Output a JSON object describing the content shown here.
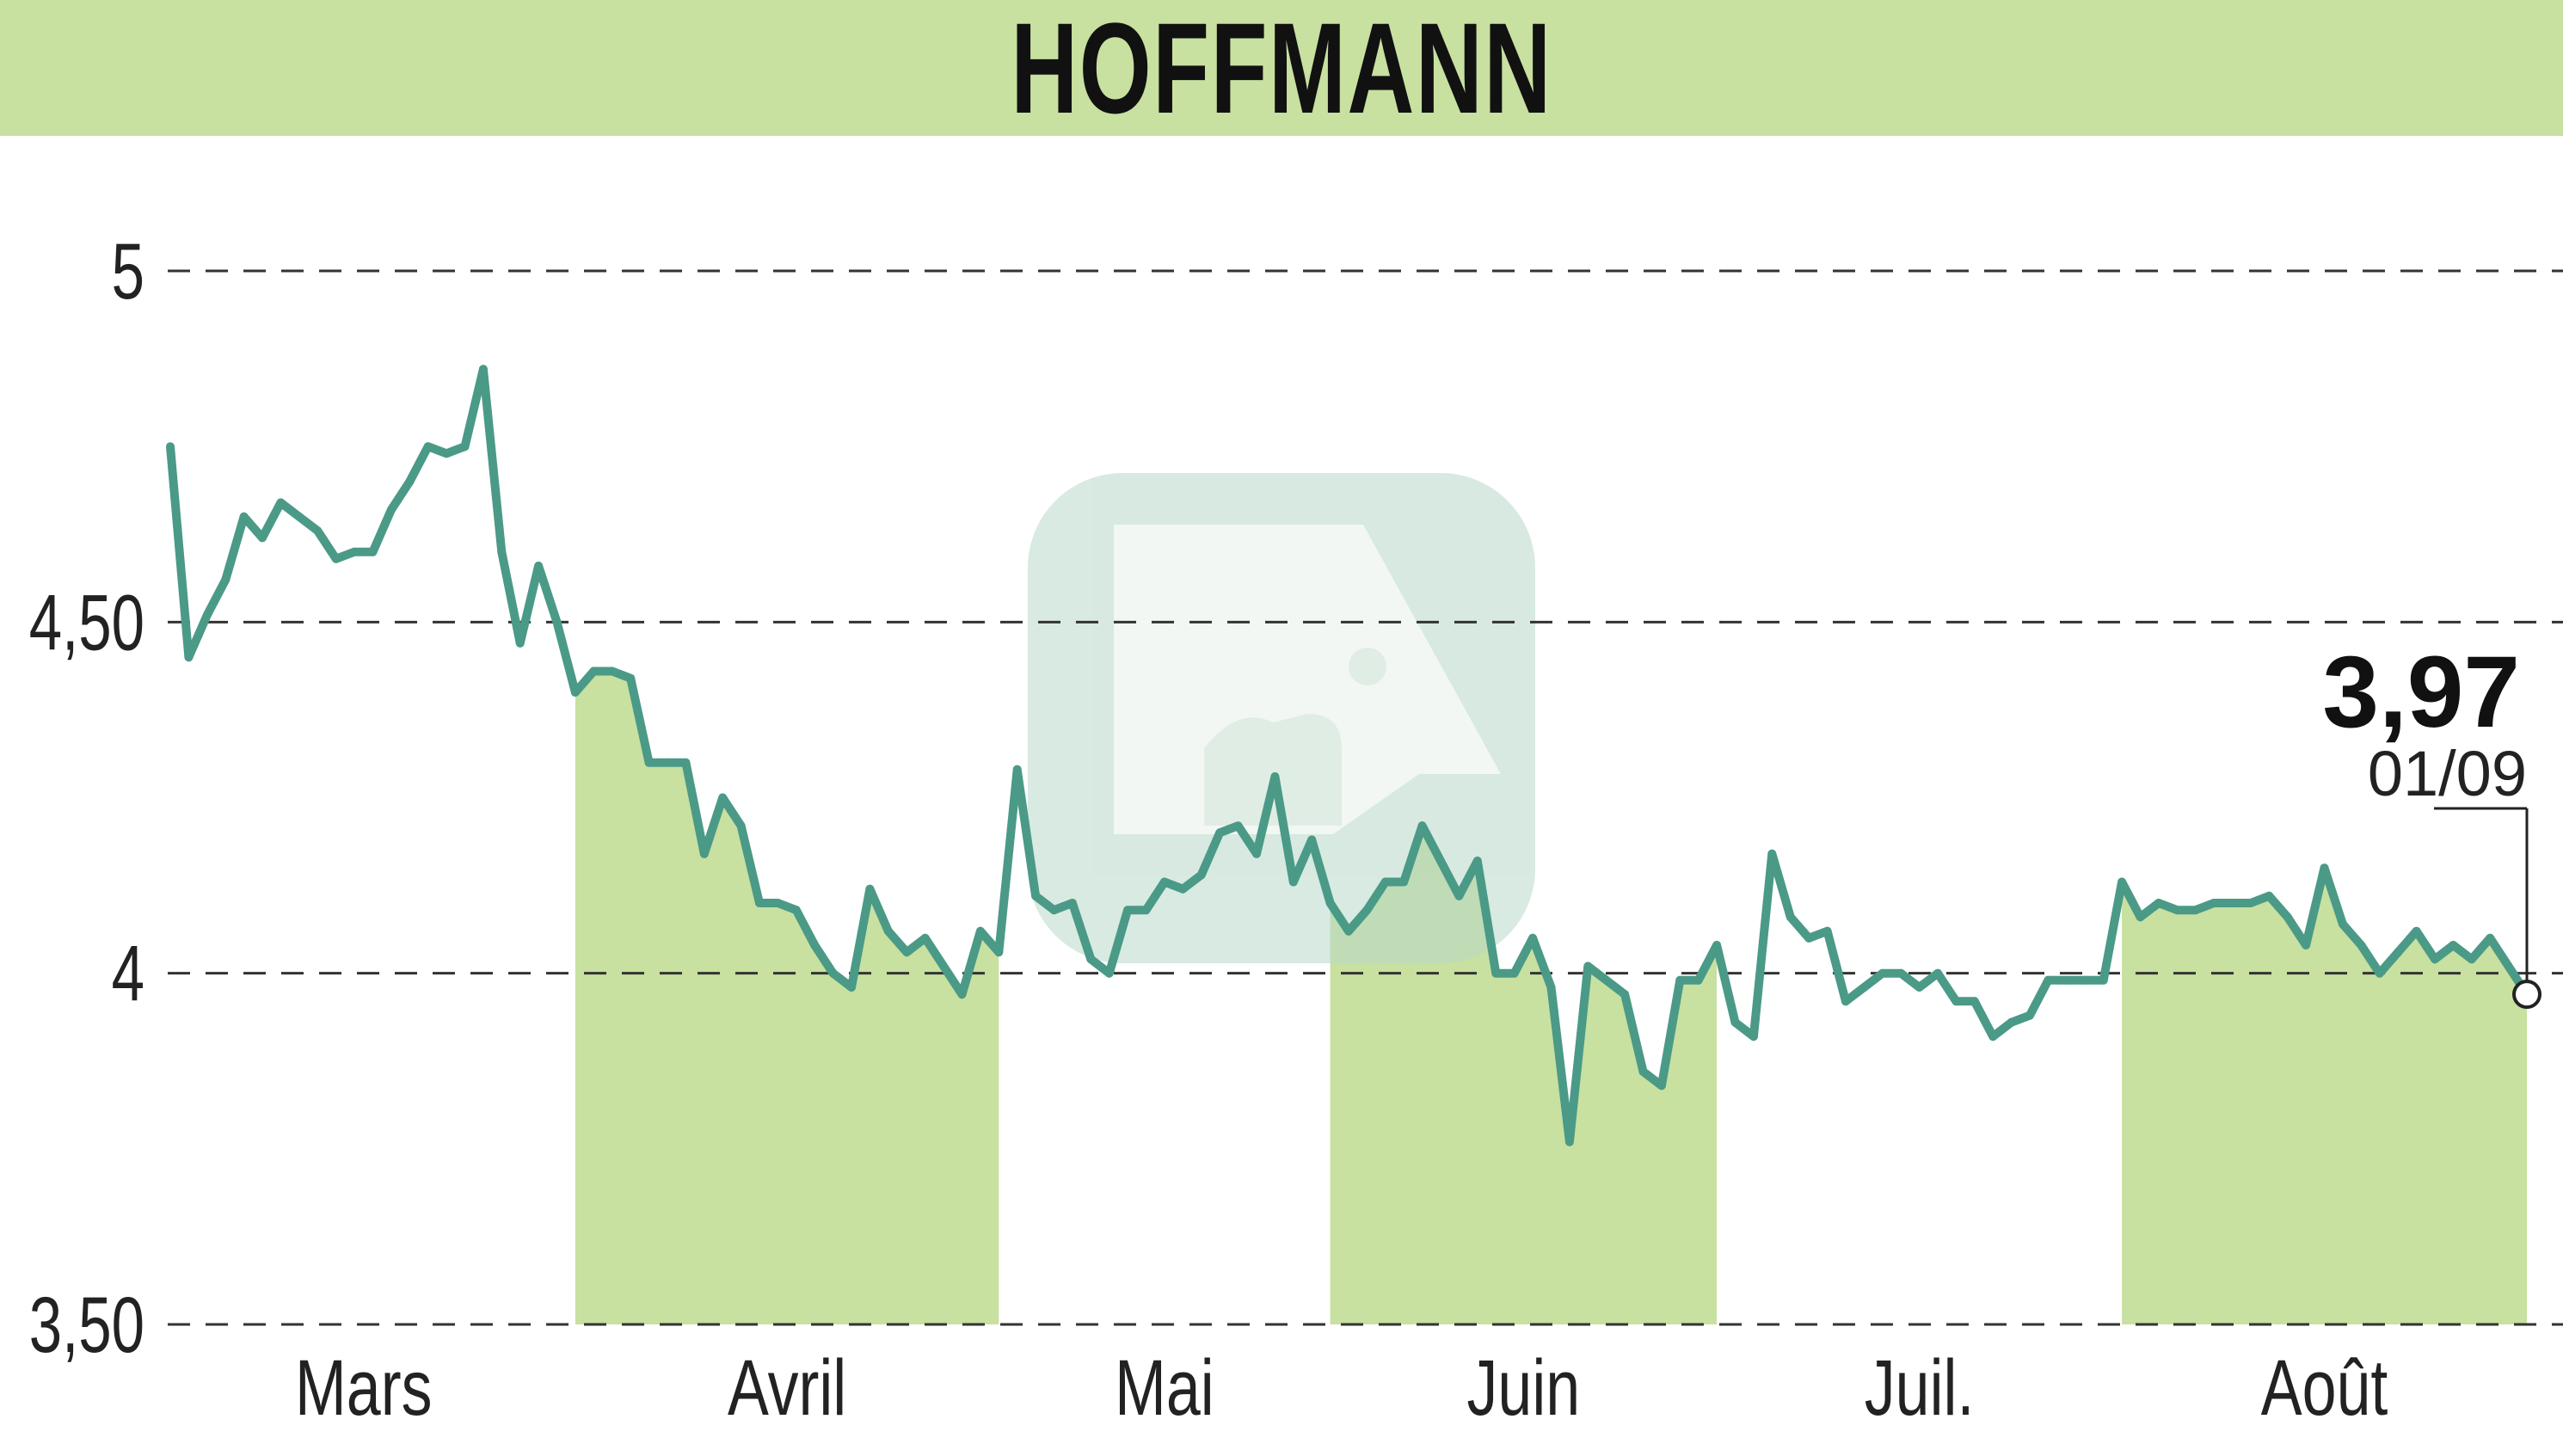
{
  "title": "HOFFMANN",
  "colors": {
    "band": "#c8e0a0",
    "line": "#4a9a87",
    "grid": "#333333",
    "watermark": "#b8d8c8"
  },
  "chart_data": {
    "type": "line",
    "title": "HOFFMANN",
    "xlabel": "",
    "ylabel": "",
    "ylim": [
      3.5,
      5.0
    ],
    "yticks": [
      {
        "value": 5.0,
        "label": "5"
      },
      {
        "value": 4.5,
        "label": "4,50"
      },
      {
        "value": 4.0,
        "label": "4"
      },
      {
        "value": 3.5,
        "label": "3,50"
      }
    ],
    "grid": "horizontal dashed",
    "months": [
      "Mars",
      "Avril",
      "Mai",
      "Juin",
      "Juil.",
      "Août"
    ],
    "shaded_months": [
      "Avril",
      "Juin",
      "Août"
    ],
    "series": [
      {
        "values": [
          4.75,
          4.45,
          4.51,
          4.56,
          4.65,
          4.62,
          4.67,
          4.65,
          4.63,
          4.59,
          4.6,
          4.6,
          4.66,
          4.7,
          4.75,
          4.74,
          4.75,
          4.86,
          4.6,
          4.47,
          4.58,
          4.5,
          4.4,
          4.43,
          4.43,
          4.42,
          4.3,
          4.3,
          4.3,
          4.17,
          4.25,
          4.21,
          4.1,
          4.1,
          4.09,
          4.04,
          4.0,
          3.98,
          4.12,
          4.06,
          4.03,
          4.05,
          4.01,
          3.97,
          4.06,
          4.03,
          4.29,
          4.11,
          4.09,
          4.1,
          4.02,
          4.0,
          4.09,
          4.09,
          4.13,
          4.12,
          4.14,
          4.2,
          4.21,
          4.17,
          4.28,
          4.13,
          4.19,
          4.1,
          4.06,
          4.09,
          4.13,
          4.13,
          4.21,
          4.16,
          4.11,
          4.16,
          4.0,
          4.0,
          4.05,
          3.98,
          3.76,
          4.01,
          3.99,
          3.97,
          3.86,
          3.84,
          3.99,
          3.99,
          4.04,
          3.93,
          3.91,
          4.17,
          4.08,
          4.05,
          4.06,
          3.96,
          3.98,
          4.0,
          4.0,
          3.98,
          4.0,
          3.96,
          3.96,
          3.91,
          3.93,
          3.94,
          3.99,
          3.99,
          3.99,
          3.99,
          4.13,
          4.08,
          4.1,
          4.09,
          4.09,
          4.1,
          4.1,
          4.1,
          4.11,
          4.08,
          4.04,
          4.15,
          4.07,
          4.04,
          4.0,
          4.03,
          4.06,
          4.02,
          4.04,
          4.02,
          4.05,
          4.01,
          3.97
        ]
      }
    ],
    "month_start_index": [
      0,
      22,
      46,
      63,
      85,
      106
    ],
    "last_value": "3,97",
    "last_date": "01/09"
  }
}
